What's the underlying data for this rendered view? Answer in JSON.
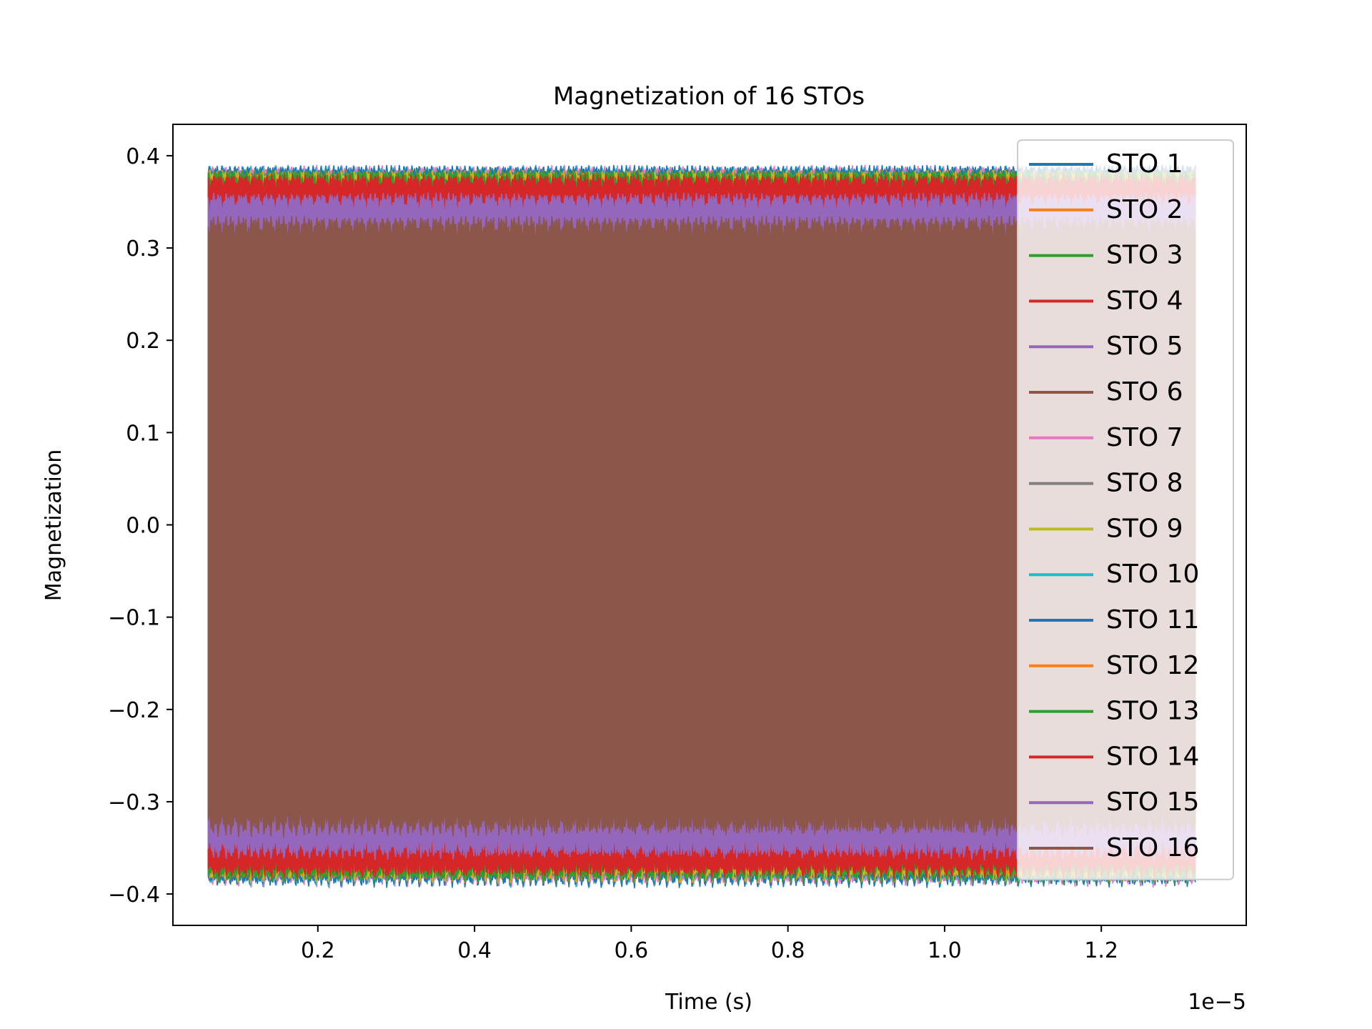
{
  "chart_data": {
    "type": "line",
    "title": "Magnetization of 16 STOs",
    "xlabel": "Time (s)",
    "ylabel": "Magnetization",
    "x_offset_text": "1e−5",
    "x_scale_factor": 1e-05,
    "xlim": [
      0.015,
      1.385
    ],
    "ylim": [
      -0.434,
      0.434
    ],
    "x_ticks": [
      {
        "value": 0.2,
        "label": "0.2"
      },
      {
        "value": 0.4,
        "label": "0.4"
      },
      {
        "value": 0.6,
        "label": "0.6"
      },
      {
        "value": 0.8,
        "label": "0.8"
      },
      {
        "value": 1.0,
        "label": "1.0"
      },
      {
        "value": 1.2,
        "label": "1.2"
      }
    ],
    "y_ticks": [
      {
        "value": 0.4,
        "label": "0.4"
      },
      {
        "value": 0.3,
        "label": "0.3"
      },
      {
        "value": 0.2,
        "label": "0.2"
      },
      {
        "value": 0.1,
        "label": "0.1"
      },
      {
        "value": 0.0,
        "label": "0.0"
      },
      {
        "value": -0.1,
        "label": "−0.1"
      },
      {
        "value": -0.2,
        "label": "−0.2"
      },
      {
        "value": -0.3,
        "label": "−0.3"
      },
      {
        "value": -0.4,
        "label": "−0.4"
      }
    ],
    "grid": false,
    "legend_position": "upper right",
    "time_range": [
      0.06,
      1.32
    ],
    "series": [
      {
        "name": "STO 1",
        "color": "#1f77b4",
        "amplitude_range": [
          0.365,
          0.39
        ]
      },
      {
        "name": "STO 2",
        "color": "#ff7f0e",
        "amplitude_range": [
          0.36,
          0.385
        ]
      },
      {
        "name": "STO 3",
        "color": "#2ca02c",
        "amplitude_range": [
          0.36,
          0.385
        ]
      },
      {
        "name": "STO 4",
        "color": "#d62728",
        "amplitude_range": [
          0.355,
          0.38
        ]
      },
      {
        "name": "STO 5",
        "color": "#9467bd",
        "amplitude_range": [
          0.33,
          0.36
        ]
      },
      {
        "name": "STO 6",
        "color": "#8c564b",
        "amplitude_range": [
          0.3,
          0.335
        ]
      },
      {
        "name": "STO 7",
        "color": "#e377c2",
        "amplitude_range": [
          0.365,
          0.39
        ]
      },
      {
        "name": "STO 8",
        "color": "#7f7f7f",
        "amplitude_range": [
          0.36,
          0.385
        ]
      },
      {
        "name": "STO 9",
        "color": "#bcbd22",
        "amplitude_range": [
          0.36,
          0.385
        ]
      },
      {
        "name": "STO 10",
        "color": "#17becf",
        "amplitude_range": [
          0.365,
          0.39
        ]
      },
      {
        "name": "STO 11",
        "color": "#1f77b4",
        "amplitude_range": [
          0.365,
          0.39
        ]
      },
      {
        "name": "STO 12",
        "color": "#ff7f0e",
        "amplitude_range": [
          0.36,
          0.385
        ]
      },
      {
        "name": "STO 13",
        "color": "#2ca02c",
        "amplitude_range": [
          0.36,
          0.385
        ]
      },
      {
        "name": "STO 14",
        "color": "#d62728",
        "amplitude_range": [
          0.355,
          0.38
        ]
      },
      {
        "name": "STO 15",
        "color": "#9467bd",
        "amplitude_range": [
          0.33,
          0.36
        ]
      },
      {
        "name": "STO 16",
        "color": "#8c564b",
        "amplitude_range": [
          0.3,
          0.335
        ]
      }
    ]
  }
}
